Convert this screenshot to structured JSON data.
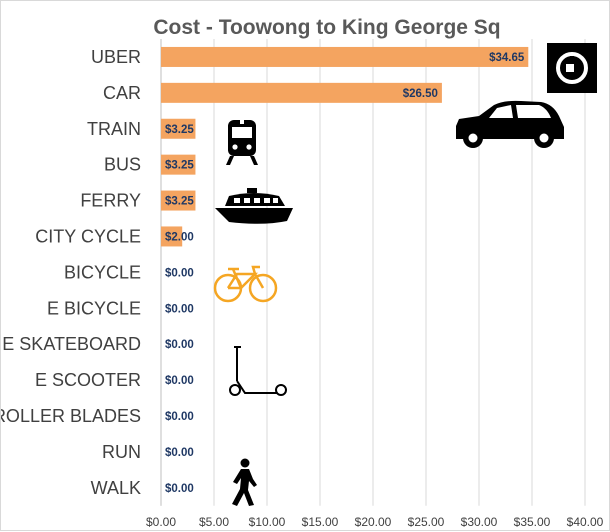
{
  "chart_data": {
    "type": "bar",
    "orientation": "horizontal",
    "title": "Cost - Toowong to King George Sq",
    "xlabel": "",
    "ylabel": "",
    "categories": [
      "UBER",
      "CAR",
      "TRAIN",
      "BUS",
      "FERRY",
      "CITY CYCLE",
      "BICYCLE",
      "E BICYCLE",
      "E SKATEBOARD",
      "E SCOOTER",
      "ROLLER BLADES",
      "RUN",
      "WALK"
    ],
    "values": [
      34.65,
      26.5,
      3.25,
      3.25,
      3.25,
      2.0,
      0.0,
      0.0,
      0.0,
      0.0,
      0.0,
      0.0,
      0.0
    ],
    "data_labels": [
      "$34.65",
      "$26.50",
      "$3.25",
      "$3.25",
      "$3.25",
      "$2.00",
      "$0.00",
      "$0.00",
      "$0.00",
      "$0.00",
      "$0.00",
      "$0.00",
      "$0.00"
    ],
    "xlim": [
      0,
      40
    ],
    "x_ticks": [
      "$0.00",
      "$5.00",
      "$10.00",
      "$15.00",
      "$20.00",
      "$25.00",
      "$30.00",
      "$35.00",
      "$40.00"
    ],
    "grid": true,
    "legend": "none",
    "colors": {
      "bar": "#f4a460",
      "label_dark": "#1f3864",
      "gridline": "#d9d9d9",
      "icon_dark": "#000000",
      "bicycle_icon": "#f5a623"
    },
    "icons": [
      "uber-logo-icon",
      "car-icon",
      "train-icon",
      "ferry-icon",
      "bicycle-icon",
      "scooter-icon",
      "walking-person-icon"
    ]
  }
}
